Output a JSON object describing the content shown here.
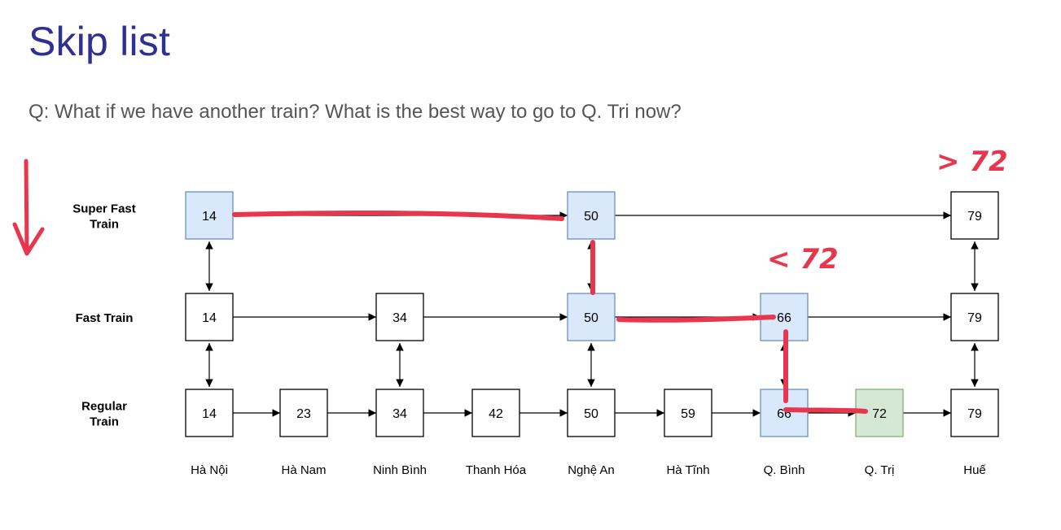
{
  "slide": {
    "title": "Skip list",
    "question": "Q: What if we have another train? What is the best way to go to Q. Tri now?"
  },
  "colors": {
    "title": "#2e3192",
    "question": "#555555",
    "node_default_fill": "#ffffff",
    "node_path_fill": "#dae8fc",
    "node_path_stroke": "#6c8ebf",
    "node_target_fill": "#d5e8d4",
    "node_target_stroke": "#82b366",
    "ink": "#e8364f"
  },
  "rows": [
    {
      "id": "super",
      "label_lines": [
        "Super Fast",
        "Train"
      ]
    },
    {
      "id": "fast",
      "label_lines": [
        "Fast Train"
      ]
    },
    {
      "id": "regular",
      "label_lines": [
        "Regular",
        "Train"
      ]
    }
  ],
  "stations": [
    "Hà Nội",
    "Hà Nam",
    "Ninh Bình",
    "Thanh Hóa",
    "Nghệ An",
    "Hà Tĩnh",
    "Q. Bình",
    "Q. Trị",
    "Huế"
  ],
  "nodes": {
    "super": [
      {
        "value": "14",
        "station": 0,
        "state": "path"
      },
      {
        "value": "50",
        "station": 4,
        "state": "path"
      },
      {
        "value": "79",
        "station": 8,
        "state": "default"
      }
    ],
    "fast": [
      {
        "value": "14",
        "station": 0,
        "state": "default"
      },
      {
        "value": "34",
        "station": 2,
        "state": "default"
      },
      {
        "value": "50",
        "station": 4,
        "state": "path"
      },
      {
        "value": "66",
        "station": 6,
        "state": "path"
      },
      {
        "value": "79",
        "station": 8,
        "state": "default"
      }
    ],
    "regular": [
      {
        "value": "14",
        "station": 0,
        "state": "default"
      },
      {
        "value": "23",
        "station": 1,
        "state": "default"
      },
      {
        "value": "34",
        "station": 2,
        "state": "default"
      },
      {
        "value": "42",
        "station": 3,
        "state": "default"
      },
      {
        "value": "50",
        "station": 4,
        "state": "default"
      },
      {
        "value": "59",
        "station": 5,
        "state": "default"
      },
      {
        "value": "66",
        "station": 6,
        "state": "path"
      },
      {
        "value": "72",
        "station": 7,
        "state": "target"
      },
      {
        "value": "79",
        "station": 8,
        "state": "default"
      }
    ]
  },
  "annotations": {
    "greater": "> 72",
    "less": "< 72"
  }
}
